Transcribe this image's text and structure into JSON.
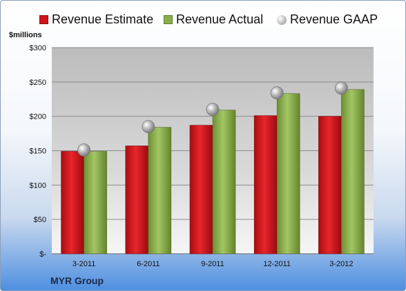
{
  "unit_label": "$millions",
  "company": "MYR Group",
  "colors": {
    "estimate": "#d0141a",
    "actual": "#8aae4a",
    "gaap": "#b9b9b9"
  },
  "chart_data": {
    "type": "bar",
    "categories": [
      "3-2011",
      "6-2011",
      "9-2011",
      "12-2011",
      "3-2012"
    ],
    "series": [
      {
        "name": "Revenue Estimate",
        "values": [
          149,
          157,
          187,
          201,
          200
        ]
      },
      {
        "name": "Revenue Actual",
        "values": [
          149,
          184,
          209,
          233,
          239
        ]
      },
      {
        "name": "Revenue GAAP",
        "values": [
          151,
          185,
          210,
          234,
          241
        ],
        "style": "marker"
      }
    ],
    "ylim": [
      0,
      300
    ],
    "yticks": [
      0,
      50,
      100,
      150,
      200,
      250,
      300
    ],
    "ytick_labels": [
      "$-",
      "$50",
      "$100",
      "$150",
      "$200",
      "$250",
      "$300"
    ],
    "grid": true,
    "legend_position": "top"
  }
}
